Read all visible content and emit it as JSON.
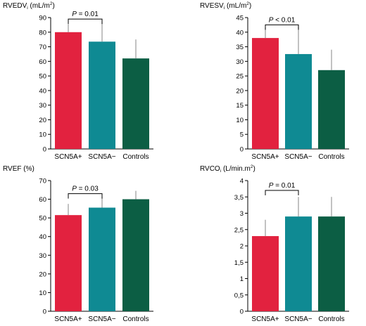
{
  "colors": {
    "SCN5A+": "#e2223f",
    "SCN5A−": "#0f8a93",
    "Controls": "#0c5e44",
    "axis": "#000000",
    "error": "#999999"
  },
  "chart_data": [
    {
      "type": "bar",
      "ylabel_main": "RVEDV",
      "ylabel_sub": "i",
      "ylabel_unit": " (mL/m",
      "ylabel_sup": "2",
      "ylabel_close": ")",
      "categories": [
        "SCN5A+",
        "SCN5A−",
        "Controls"
      ],
      "values": [
        80,
        73.5,
        62
      ],
      "errors": [
        5.5,
        13,
        13
      ],
      "ylim": [
        0,
        90
      ],
      "ticks": [
        0,
        10,
        20,
        30,
        40,
        50,
        60,
        70,
        80,
        90
      ],
      "tick_labels": [
        "0",
        "10",
        "20",
        "30",
        "40",
        "50",
        "60",
        "70",
        "80",
        "90"
      ],
      "sig": {
        "from": 0,
        "to": 1,
        "y": 89,
        "p_letter": "P",
        "p_rest": " = 0.01"
      }
    },
    {
      "type": "bar",
      "ylabel_main": "RVESV",
      "ylabel_sub": "i",
      "ylabel_unit": " (mL/m",
      "ylabel_sup": "2",
      "ylabel_close": ")",
      "categories": [
        "SCN5A+",
        "SCN5A−",
        "Controls"
      ],
      "values": [
        38,
        32.5,
        27
      ],
      "errors": [
        3.5,
        9.5,
        7
      ],
      "ylim": [
        0,
        45
      ],
      "ticks": [
        0,
        5,
        10,
        15,
        20,
        25,
        30,
        35,
        40,
        45
      ],
      "tick_labels": [
        "0",
        "5",
        "10",
        "15",
        "20",
        "25",
        "30",
        "35",
        "40",
        "45"
      ],
      "sig": {
        "from": 0,
        "to": 1,
        "y": 42.5,
        "p_letter": "P",
        "p_rest": " < 0.01"
      }
    },
    {
      "type": "bar",
      "ylabel_main": "RVEF (%)",
      "categories": [
        "SCN5A+",
        "SCN5A−",
        "Controls"
      ],
      "values": [
        51.5,
        55.5,
        60
      ],
      "errors": [
        6,
        5.5,
        4.5
      ],
      "ylim": [
        0,
        70
      ],
      "ticks": [
        0,
        10,
        20,
        30,
        40,
        50,
        60,
        70
      ],
      "tick_labels": [
        "0",
        "10",
        "20",
        "30",
        "40",
        "50",
        "60",
        "70"
      ],
      "sig": {
        "from": 0,
        "to": 1,
        "y": 63,
        "p_letter": "P",
        "p_rest": " = 0.03"
      }
    },
    {
      "type": "bar",
      "ylabel_main": "RVCO",
      "ylabel_sub": "i",
      "ylabel_unit": " (L/min.m",
      "ylabel_sup": "2",
      "ylabel_close": ")",
      "categories": [
        "SCN5A+",
        "SCN5A−",
        "Controls"
      ],
      "values": [
        2.3,
        2.9,
        2.9
      ],
      "errors": [
        0.5,
        0.6,
        0.6
      ],
      "ylim": [
        0,
        4
      ],
      "ticks": [
        0,
        0.5,
        1,
        1.5,
        2,
        2.5,
        3,
        3.5,
        4
      ],
      "tick_labels": [
        "0",
        "0,5",
        "1",
        "1,5",
        "2",
        "2,5",
        "3",
        "3,5",
        "4"
      ],
      "sig": {
        "from": 0,
        "to": 1,
        "y": 3.7,
        "p_letter": "P",
        "p_rest": " = 0.01"
      }
    }
  ]
}
